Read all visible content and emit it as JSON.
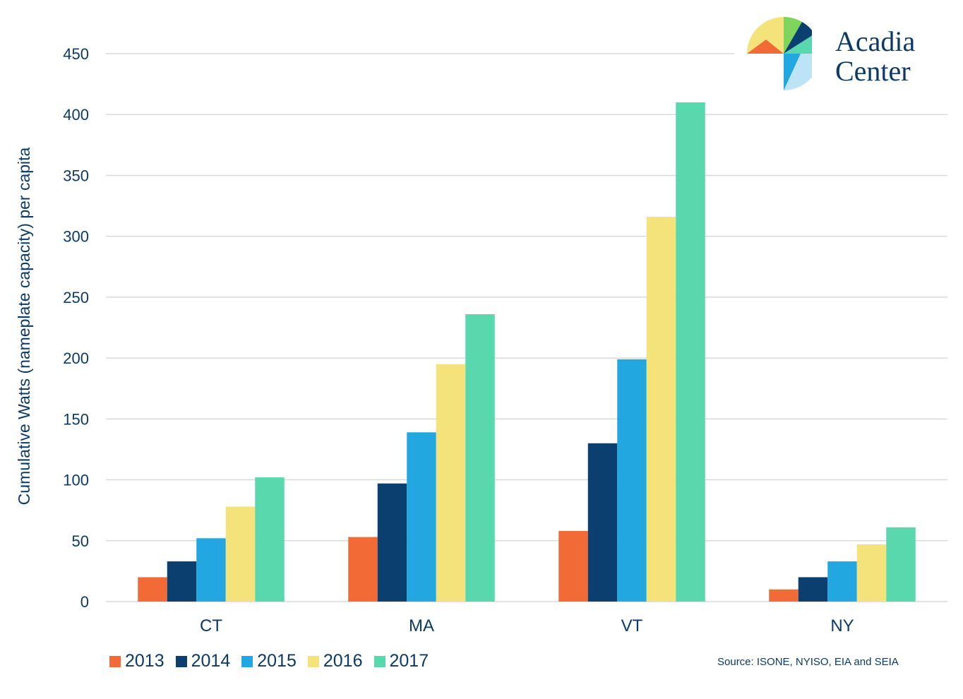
{
  "chart_data": {
    "type": "bar",
    "categories": [
      "CT",
      "MA",
      "VT",
      "NY"
    ],
    "series": [
      {
        "name": "2013",
        "color": "#f26a36",
        "values": [
          20,
          53,
          58,
          10
        ]
      },
      {
        "name": "2014",
        "color": "#0b3f6f",
        "values": [
          33,
          97,
          130,
          20
        ]
      },
      {
        "name": "2015",
        "color": "#22a7e0",
        "values": [
          52,
          139,
          199,
          33
        ]
      },
      {
        "name": "2016",
        "color": "#f4e27b",
        "values": [
          78,
          195,
          316,
          47
        ]
      },
      {
        "name": "2017",
        "color": "#5ad8ad",
        "values": [
          102,
          236,
          410,
          61
        ]
      }
    ],
    "title": "",
    "xlabel": "",
    "ylabel": "Cumulative Watts (nameplate capacity) per capita",
    "ylim": [
      0,
      450
    ],
    "yticks": [
      0,
      50,
      100,
      150,
      200,
      250,
      300,
      350,
      400,
      450
    ],
    "grid": true,
    "legend_position": "bottom-left"
  },
  "source_note": "Source:  ISONE, NYISO, EIA and SEIA",
  "logo": {
    "name": "logo-acadia-center",
    "line1": "Acadia",
    "line2": "Center",
    "colors": [
      "#f4e27b",
      "#7fd45b",
      "#0b3f6f",
      "#5ad8ad",
      "#22a7e0",
      "#bde4f6",
      "#f26a36"
    ]
  }
}
